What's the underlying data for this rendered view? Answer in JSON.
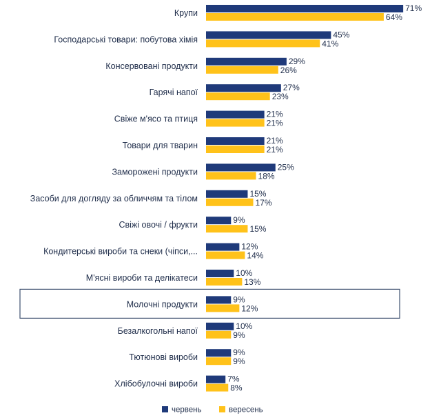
{
  "chart_data": {
    "type": "bar",
    "orientation": "horizontal",
    "categories": [
      "Крупи",
      "Господарські товари: побутова хімія",
      "Консервовані продукти",
      "Гарячі напої",
      "Свіже м'ясо та птиця",
      "Товари для тварин",
      "Заморожені продукти",
      "Засоби для догляду за обличчям та тілом",
      "Свіжі овочі / фрукти",
      "Кондитерські вироби та снеки (чіпси,...",
      "М'ясні вироби та делікатеси",
      "Молочні продукти",
      "Безалкогольні напої",
      "Тютюнові вироби",
      "Хлібобулочні вироби"
    ],
    "series": [
      {
        "name": "червень",
        "color": "#1f3a7a",
        "values": [
          71,
          45,
          29,
          27,
          21,
          21,
          25,
          15,
          9,
          12,
          10,
          9,
          10,
          9,
          7
        ],
        "labels": [
          "71%",
          "45%",
          "29%",
          "27%",
          "21%",
          "21%",
          "25%",
          "15%",
          "9%",
          "12%",
          "10%",
          "9%",
          "10%",
          "9%",
          "7%"
        ]
      },
      {
        "name": "вересень",
        "color": "#ffc21a",
        "values": [
          64,
          41,
          26,
          23,
          21,
          21,
          18,
          17,
          15,
          14,
          13,
          12,
          9,
          9,
          8
        ],
        "labels": [
          "64%",
          "41%",
          "26%",
          "23%",
          "21%",
          "21%",
          "18%",
          "17%",
          "15%",
          "14%",
          "13%",
          "12%",
          "9%",
          "9%",
          "8%"
        ]
      }
    ],
    "highlighted_category": "Молочні продукти",
    "legend_position": "bottom",
    "grid": false,
    "xlim": [
      0,
      80
    ]
  }
}
